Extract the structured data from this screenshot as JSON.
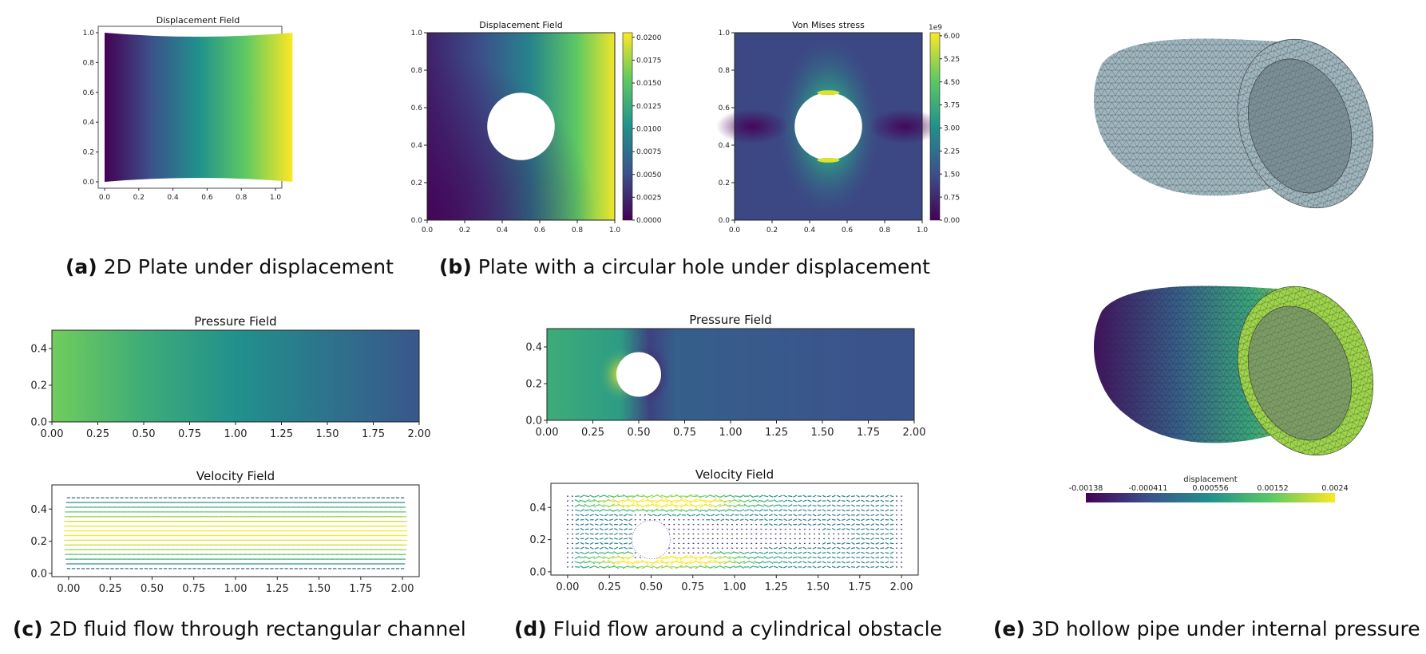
{
  "captions": {
    "a": {
      "letter": "(a)",
      "text": "2D Plate under displacement"
    },
    "b": {
      "letter": "(b)",
      "text": "Plate with a circular hole under displacement"
    },
    "c": {
      "letter": "(c)",
      "text": "2D fluid flow through rectangular channel"
    },
    "d": {
      "letter": "(d)",
      "text": "Fluid flow around a cylindrical obstacle"
    },
    "e": {
      "letter": "(e)",
      "text": "3D hollow pipe under internal pressure"
    }
  },
  "colormap": [
    "#440154",
    "#3b528b",
    "#21918c",
    "#5ec962",
    "#fde725"
  ],
  "mesh_color": "#9fb6bf",
  "chart_data": [
    {
      "id": "a",
      "type": "heatmap",
      "title": "Displacement Field",
      "xticks": [
        "0.0",
        "0.2",
        "0.4",
        "0.6",
        "0.8",
        "1.0"
      ],
      "yticks": [
        "0.0",
        "0.2",
        "0.4",
        "0.6",
        "0.8",
        "1.0"
      ],
      "xlim": [
        0,
        1.1
      ],
      "ylim": [
        0,
        1.0
      ],
      "gradient": "left-to-right"
    },
    {
      "id": "b1",
      "type": "heatmap",
      "title": "Displacement Field",
      "xticks": [
        "0.0",
        "0.2",
        "0.4",
        "0.6",
        "0.8",
        "1.0"
      ],
      "yticks": [
        "0.0",
        "0.2",
        "0.4",
        "0.6",
        "0.8",
        "1.0"
      ],
      "xlim": [
        0,
        1
      ],
      "ylim": [
        0,
        1
      ],
      "hole": {
        "cx": 0.5,
        "cy": 0.5,
        "r": 0.18
      },
      "colorbar": [
        "0.0200",
        "0.0175",
        "0.0150",
        "0.0125",
        "0.0100",
        "0.0075",
        "0.0050",
        "0.0025",
        "0.0000"
      ],
      "colorbar_range": [
        0,
        0.0205
      ]
    },
    {
      "id": "b2",
      "type": "heatmap",
      "title": "Von Mises stress",
      "xticks": [
        "0.0",
        "0.2",
        "0.4",
        "0.6",
        "0.8",
        "1.0"
      ],
      "yticks": [
        "0.0",
        "0.2",
        "0.4",
        "0.6",
        "0.8",
        "1.0"
      ],
      "xlim": [
        0,
        1
      ],
      "ylim": [
        0,
        1
      ],
      "hole": {
        "cx": 0.5,
        "cy": 0.5,
        "r": 0.18
      },
      "colorbar": [
        "6.00",
        "5.25",
        "4.50",
        "3.75",
        "3.00",
        "2.25",
        "1.50",
        "0.75",
        "0.00"
      ],
      "colorbar_exponent": "1e9",
      "colorbar_range": [
        0,
        6.1
      ]
    },
    {
      "id": "c1",
      "type": "heatmap",
      "title": "Pressure Field",
      "xticks": [
        "0.00",
        "0.25",
        "0.50",
        "0.75",
        "1.00",
        "1.25",
        "1.50",
        "1.75",
        "2.00"
      ],
      "yticks": [
        "0.0",
        "0.2",
        "0.4"
      ],
      "xlim": [
        0,
        2
      ],
      "ylim": [
        0,
        0.5
      ]
    },
    {
      "id": "c2",
      "type": "quiver",
      "title": "Velocity Field",
      "xticks": [
        "0.00",
        "0.25",
        "0.50",
        "0.75",
        "1.00",
        "1.25",
        "1.50",
        "1.75",
        "2.00"
      ],
      "yticks": [
        "0.0",
        "0.2",
        "0.4"
      ],
      "xlim": [
        -0.1,
        2.1
      ],
      "ylim": [
        -0.02,
        0.55
      ]
    },
    {
      "id": "d1",
      "type": "heatmap",
      "title": "Pressure Field",
      "xticks": [
        "0.00",
        "0.25",
        "0.50",
        "0.75",
        "1.00",
        "1.25",
        "1.50",
        "1.75",
        "2.00"
      ],
      "yticks": [
        "0.0",
        "0.2",
        "0.4"
      ],
      "xlim": [
        0,
        2
      ],
      "ylim": [
        0,
        0.5
      ],
      "hole": {
        "cx": 0.5,
        "cy": 0.25,
        "r": 0.12
      }
    },
    {
      "id": "d2",
      "type": "quiver",
      "title": "Velocity Field",
      "xticks": [
        "0.00",
        "0.25",
        "0.50",
        "0.75",
        "1.00",
        "1.25",
        "1.50",
        "1.75",
        "2.00"
      ],
      "yticks": [
        "0.0",
        "0.2",
        "0.4"
      ],
      "xlim": [
        -0.1,
        2.1
      ],
      "ylim": [
        -0.02,
        0.55
      ],
      "hole": {
        "cx": 0.5,
        "cy": 0.2,
        "r": 0.06
      }
    },
    {
      "id": "e",
      "type": "mesh_render",
      "colorbar_title": "displacement",
      "colorbar_ticks": [
        "-0.00138",
        "-0.000411",
        "0.000556",
        "0.00152",
        "0.0024"
      ]
    }
  ]
}
